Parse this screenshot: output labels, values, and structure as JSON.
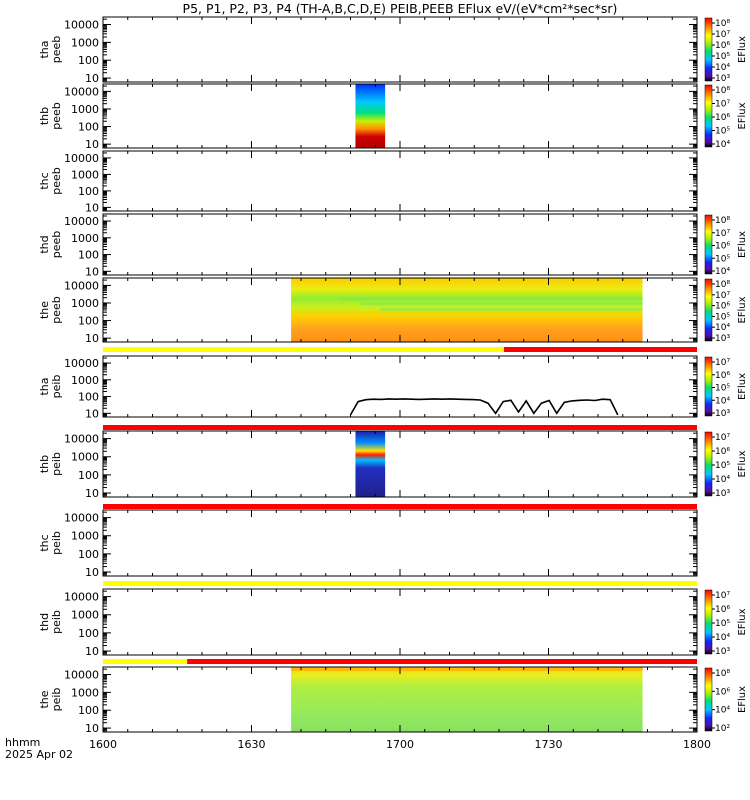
{
  "title": "P5, P1, P2, P3, P4 (TH-A,B,C,D,E) PEIB,PEEB EFlux eV/(eV*cm²*sec*sr)",
  "time_axis": {
    "row1": "hhmm",
    "row2": "2025 Apr 02"
  },
  "chart_data": {
    "type": "heatmap",
    "x_ticks": [
      "1600",
      "1630",
      "1700",
      "1730",
      "1800"
    ],
    "xlim_minutes_after_1600": [
      0,
      120
    ],
    "y_scale": "log",
    "y_ticks": [
      "10",
      "100",
      "1000",
      "10000"
    ],
    "colorbar_label": "EFlux",
    "panels": [
      {
        "line1": "tha",
        "line2": "peeb",
        "colorbar": [
          "10³",
          "10⁴",
          "10⁵",
          "10⁶",
          "10⁷",
          "10⁸"
        ],
        "data_start": null,
        "data_end": null,
        "style": "none"
      },
      {
        "line1": "thb",
        "line2": "peeb",
        "colorbar": [
          "10⁴",
          "10⁵",
          "10⁶",
          "10⁷",
          "10⁸"
        ],
        "data_start": 51,
        "data_end": 57,
        "style": "thb_e"
      },
      {
        "line1": "thc",
        "line2": "peeb",
        "colorbar": [],
        "data_start": null,
        "data_end": null,
        "style": "none"
      },
      {
        "line1": "thd",
        "line2": "peeb",
        "colorbar": [
          "10⁴",
          "10⁵",
          "10⁶",
          "10⁷",
          "10⁸"
        ],
        "data_start": null,
        "data_end": null,
        "style": "none"
      },
      {
        "line1": "the",
        "line2": "peeb",
        "colorbar": [
          "10³",
          "10⁴",
          "10⁵",
          "10⁶",
          "10⁷",
          "10⁸"
        ],
        "data_start": 38,
        "data_end": 109,
        "style": "the_e"
      },
      {
        "line1": "tha",
        "line2": "peib",
        "colorbar": [
          "10³",
          "10⁴",
          "10⁵",
          "10⁶",
          "10⁷"
        ],
        "data_start": null,
        "data_end": null,
        "style": "none"
      },
      {
        "line1": "thb",
        "line2": "peib",
        "colorbar": [
          "10³",
          "10⁴",
          "10⁵",
          "10⁶",
          "10⁷"
        ],
        "data_start": 51,
        "data_end": 57,
        "style": "thb_i"
      },
      {
        "line1": "thc",
        "line2": "peib",
        "colorbar": [],
        "data_start": null,
        "data_end": null,
        "style": "none"
      },
      {
        "line1": "thd",
        "line2": "peib",
        "colorbar": [
          "10³",
          "10⁴",
          "10⁵",
          "10⁶",
          "10⁷"
        ],
        "data_start": null,
        "data_end": null,
        "style": "none"
      },
      {
        "line1": "the",
        "line2": "peib",
        "colorbar": [
          "10²",
          "10⁴",
          "10⁶",
          "10⁸"
        ],
        "data_start": 38,
        "data_end": 109,
        "style": "the_i"
      }
    ],
    "status_bars": [
      {
        "after_panel": 5,
        "segments": [
          {
            "start": 0,
            "end": 81,
            "color": "#ffff00"
          },
          {
            "start": 81,
            "end": 120,
            "color": "#ff0000"
          }
        ]
      },
      {
        "after_panel": 6,
        "segments": [
          {
            "start": 0,
            "end": 120,
            "color": "#ff0000"
          }
        ]
      },
      {
        "after_panel": 7,
        "segments": [
          {
            "start": 0,
            "end": 120,
            "color": "#ff0000"
          }
        ]
      },
      {
        "after_panel": 8,
        "segments": [
          {
            "start": 0,
            "end": 120,
            "color": "#ffff00"
          }
        ]
      },
      {
        "after_panel": 9,
        "segments": [
          {
            "start": 0,
            "end": 17,
            "color": "#ffff00"
          },
          {
            "start": 17,
            "end": 120,
            "color": "#ff0000"
          }
        ]
      }
    ],
    "spacecraft_potential_trace": {
      "panel": 5,
      "start": 50,
      "end": 104,
      "values_eV": [
        8,
        50,
        65,
        70,
        68,
        72,
        70,
        72,
        70,
        68,
        70,
        72,
        70,
        72,
        70,
        68,
        66,
        62,
        40,
        10,
        50,
        60,
        12,
        55,
        10,
        40,
        58,
        10,
        45,
        55,
        60,
        62,
        58,
        70,
        65,
        8
      ]
    }
  }
}
